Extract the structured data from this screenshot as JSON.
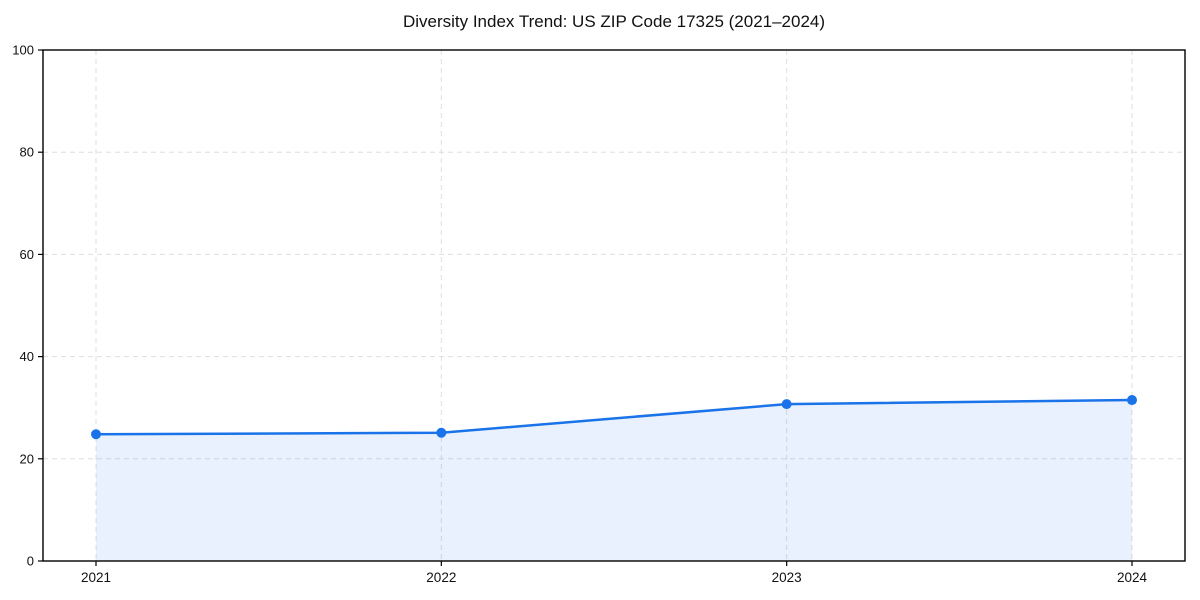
{
  "title": "Diversity Index Trend: US ZIP Code 17325 (2021–2024)",
  "chart_data": {
    "type": "line",
    "title": "Diversity Index Trend: US ZIP Code 17325 (2021–2024)",
    "x": [
      "2021",
      "2022",
      "2023",
      "2024"
    ],
    "series": [
      {
        "name": "Diversity Index",
        "values": [
          24.8,
          25.1,
          30.7,
          31.5
        ]
      }
    ],
    "xlabel": "",
    "ylabel": "",
    "ylim": [
      0,
      100
    ],
    "yticks": [
      0,
      20,
      40,
      60,
      80,
      100
    ],
    "grid": true,
    "grid_style": "dashed",
    "legend": "none",
    "marker": "circle",
    "area_fill": true
  },
  "colors": {
    "line": "#1a73e8",
    "fill": "#1a73e8",
    "fill_opacity": 0.1,
    "grid": "#dedede",
    "axis": "#000000",
    "text": "#111111",
    "background": "#ffffff"
  }
}
